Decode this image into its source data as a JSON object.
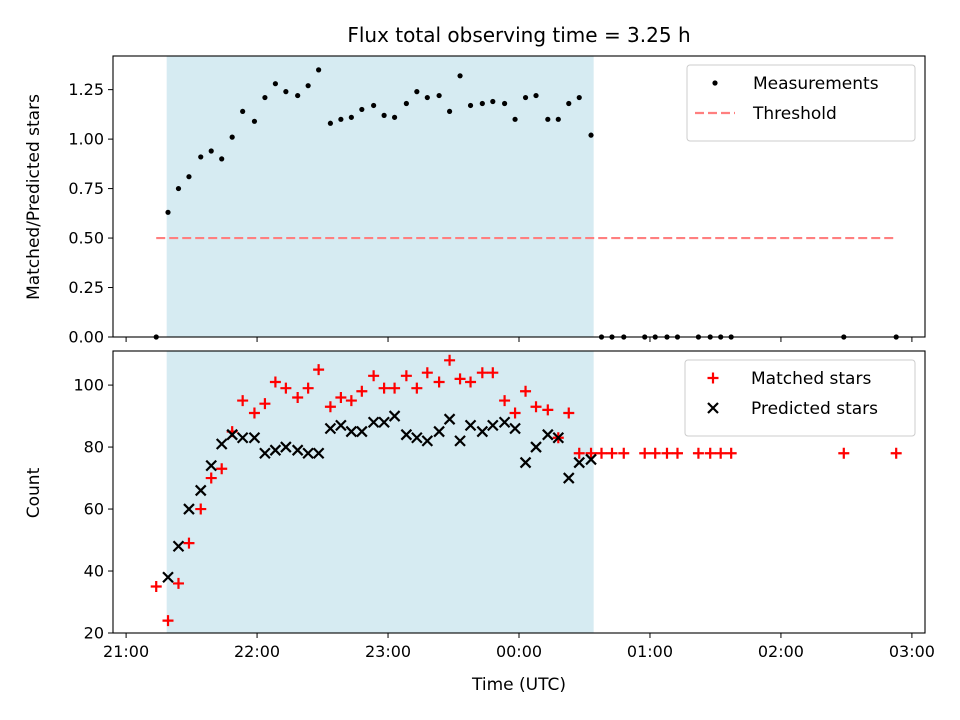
{
  "chart_data": {
    "type": "scatter",
    "title": "Flux total observing time = 3.25 h",
    "xlabel": "Time (UTC)",
    "x_unit": "hours since 21:00 UTC (axis ticks printed as clock time)",
    "xlim": [
      -0.1,
      6.1
    ],
    "xticks": [
      {
        "value": 0,
        "label": "21:00"
      },
      {
        "value": 1,
        "label": "22:00"
      },
      {
        "value": 2,
        "label": "23:00"
      },
      {
        "value": 3,
        "label": "00:00"
      },
      {
        "value": 4,
        "label": "01:00"
      },
      {
        "value": 5,
        "label": "02:00"
      },
      {
        "value": 6,
        "label": "03:00"
      }
    ],
    "shaded_span": {
      "x0": 0.31,
      "x1": 3.57,
      "color": "#add8e6",
      "opacity": 0.5
    },
    "panels": [
      {
        "ylabel": "Matched/Predicted stars",
        "ylim": [
          0,
          1.42
        ],
        "yticks": [
          {
            "value": 0,
            "label": "0.00"
          },
          {
            "value": 0.25,
            "label": "0.25"
          },
          {
            "value": 0.5,
            "label": "0.50"
          },
          {
            "value": 0.75,
            "label": "0.75"
          },
          {
            "value": 1.0,
            "label": "1.00"
          },
          {
            "value": 1.25,
            "label": "1.25"
          }
        ],
        "legend": "top-right",
        "lines": [
          {
            "name": "Threshold",
            "style": "dashed",
            "color": "#ff7f7f",
            "x": [
              0.23,
              5.87
            ],
            "y": [
              0.5,
              0.5
            ]
          }
        ],
        "series": [
          {
            "name": "Measurements",
            "marker": "dot",
            "color": "#000000",
            "x": [
              0.23,
              0.32,
              0.4,
              0.48,
              0.57,
              0.65,
              0.73,
              0.81,
              0.89,
              0.98,
              1.06,
              1.14,
              1.22,
              1.31,
              1.39,
              1.47,
              1.56,
              1.64,
              1.72,
              1.8,
              1.89,
              1.97,
              2.05,
              2.14,
              2.22,
              2.3,
              2.39,
              2.47,
              2.55,
              2.63,
              2.72,
              2.8,
              2.89,
              2.97,
              3.05,
              3.13,
              3.22,
              3.3,
              3.38,
              3.46,
              3.55,
              3.63,
              3.71,
              3.8,
              3.96,
              4.04,
              4.13,
              4.21,
              4.37,
              4.46,
              4.54,
              4.62,
              5.48,
              5.88
            ],
            "y": [
              0.0,
              0.63,
              0.75,
              0.81,
              0.91,
              0.94,
              0.9,
              1.01,
              1.14,
              1.09,
              1.21,
              1.28,
              1.24,
              1.22,
              1.27,
              1.35,
              1.08,
              1.1,
              1.11,
              1.15,
              1.17,
              1.12,
              1.11,
              1.18,
              1.24,
              1.21,
              1.22,
              1.14,
              1.32,
              1.17,
              1.18,
              1.19,
              1.18,
              1.1,
              1.21,
              1.22,
              1.1,
              1.1,
              1.18,
              1.21,
              1.02,
              0.0,
              0.0,
              0.0,
              0.0,
              0.0,
              0.0,
              0.0,
              0.0,
              0.0,
              0.0,
              0.0,
              0.0,
              0.0
            ]
          }
        ]
      },
      {
        "ylabel": "Count",
        "ylim": [
          20,
          111
        ],
        "yticks": [
          {
            "value": 20,
            "label": "20"
          },
          {
            "value": 40,
            "label": "40"
          },
          {
            "value": 60,
            "label": "60"
          },
          {
            "value": 80,
            "label": "80"
          },
          {
            "value": 100,
            "label": "100"
          }
        ],
        "legend": "top-right",
        "series": [
          {
            "name": "Matched stars",
            "marker": "plus",
            "color": "#ff0000",
            "x": [
              0.23,
              0.32,
              0.4,
              0.48,
              0.57,
              0.65,
              0.73,
              0.81,
              0.89,
              0.98,
              1.06,
              1.14,
              1.22,
              1.31,
              1.39,
              1.47,
              1.56,
              1.64,
              1.72,
              1.8,
              1.89,
              1.97,
              2.05,
              2.14,
              2.22,
              2.3,
              2.39,
              2.47,
              2.55,
              2.63,
              2.72,
              2.8,
              2.89,
              2.97,
              3.05,
              3.13,
              3.22,
              3.3,
              3.38,
              3.46,
              3.55,
              3.63,
              3.71,
              3.8,
              3.96,
              4.04,
              4.13,
              4.21,
              4.37,
              4.46,
              4.54,
              4.62,
              5.48,
              5.88
            ],
            "y": [
              35,
              24,
              36,
              49,
              60,
              70,
              73,
              85,
              95,
              91,
              94,
              101,
              99,
              96,
              99,
              105,
              93,
              96,
              95,
              98,
              103,
              99,
              99,
              103,
              99,
              104,
              101,
              108,
              102,
              101,
              104,
              104,
              95,
              91,
              98,
              93,
              92,
              83,
              91,
              78,
              78,
              78,
              78,
              78,
              78,
              78,
              78,
              78,
              78,
              78,
              78,
              78,
              78,
              78
            ]
          },
          {
            "name": "Predicted stars",
            "marker": "x",
            "color": "#000000",
            "x": [
              0.32,
              0.4,
              0.48,
              0.57,
              0.65,
              0.73,
              0.81,
              0.89,
              0.98,
              1.06,
              1.14,
              1.22,
              1.31,
              1.39,
              1.47,
              1.56,
              1.64,
              1.72,
              1.8,
              1.89,
              1.97,
              2.05,
              2.14,
              2.22,
              2.3,
              2.39,
              2.47,
              2.55,
              2.63,
              2.72,
              2.8,
              2.89,
              2.97,
              3.05,
              3.13,
              3.22,
              3.3,
              3.38,
              3.46,
              3.55
            ],
            "y": [
              38,
              48,
              60,
              66,
              74,
              81,
              84,
              83,
              83,
              78,
              79,
              80,
              79,
              78,
              78,
              86,
              87,
              85,
              85,
              88,
              88,
              90,
              84,
              83,
              82,
              85,
              89,
              82,
              87,
              85,
              87,
              88,
              86,
              75,
              80,
              84,
              83,
              70,
              75,
              76
            ]
          }
        ]
      }
    ]
  }
}
